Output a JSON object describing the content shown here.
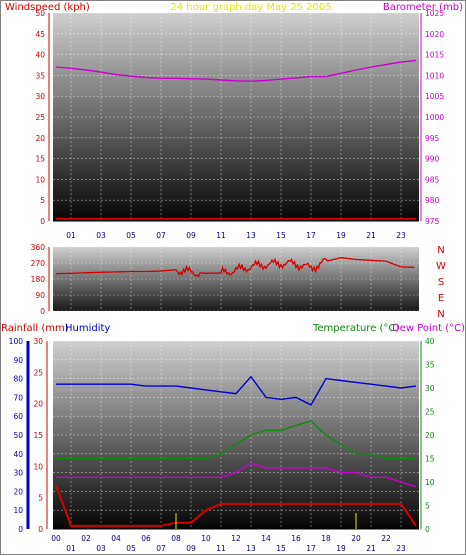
{
  "header": {
    "left_label": "Windspeed (kph)",
    "center_label": "24 hour graph day   May 25 2005",
    "right_label": "Barometer (mb)"
  },
  "colors": {
    "windspeed": "#d40000",
    "barometer": "#cc00cc",
    "title": "#e6e600",
    "rainfall": "#d40000",
    "humidity": "#0000cc",
    "temperature": "#118811",
    "dewpoint": "#cc00cc",
    "gridline": "#ffffff"
  },
  "chart_data": [
    {
      "id": "wind_baro",
      "type": "line",
      "x": [
        0,
        1,
        2,
        3,
        4,
        5,
        6,
        7,
        8,
        9,
        10,
        11,
        12,
        13,
        14,
        15,
        16,
        17,
        18,
        19,
        20,
        21,
        22,
        23,
        24
      ],
      "xticks": [
        "01",
        "03",
        "05",
        "07",
        "09",
        "11",
        "13",
        "15",
        "17",
        "19",
        "21",
        "23"
      ],
      "left_axis": {
        "ylim": [
          0,
          50
        ],
        "ticks": [
          "0",
          "5",
          "10",
          "15",
          "20",
          "25",
          "30",
          "35",
          "40",
          "45",
          "50"
        ]
      },
      "right_axis": {
        "ylim": [
          975,
          1025
        ],
        "ticks": [
          "975",
          "980",
          "985",
          "990",
          "995",
          "1000",
          "1005",
          "1010",
          "1015",
          "1020",
          "1025"
        ]
      },
      "series": [
        {
          "axis": "left",
          "values": [
            0.5,
            0.5,
            0.5,
            0.5,
            0.5,
            0.5,
            0.5,
            0.5,
            0.5,
            0.5,
            0.5,
            0.5,
            0.5,
            0.5,
            0.5,
            0.5,
            0.5,
            0.5,
            0.5,
            0.5,
            0.5,
            0.5,
            0.5,
            0.5,
            0.5
          ]
        },
        {
          "axis": "right",
          "values": [
            1012,
            1011.7,
            1011.3,
            1010.8,
            1010.2,
            1009.8,
            1009.5,
            1009.3,
            1009.3,
            1009.2,
            1009.1,
            1008.9,
            1008.7,
            1008.6,
            1008.8,
            1009.1,
            1009.4,
            1009.7,
            1009.7,
            1010.5,
            1011.3,
            1012,
            1012.6,
            1013.2,
            1013.6
          ]
        }
      ]
    },
    {
      "id": "wind_dir",
      "type": "line",
      "x": [
        0,
        1,
        2,
        3,
        4,
        5,
        6,
        7,
        8,
        9,
        10,
        11,
        12,
        13,
        14,
        15,
        16,
        17,
        18,
        19,
        20,
        21,
        22,
        23,
        24
      ],
      "y_ticks": [
        "0",
        "90",
        "180",
        "270",
        "360"
      ],
      "compass": [
        "N",
        "W",
        "S",
        "E",
        "N"
      ],
      "ylim": [
        0,
        360
      ],
      "series": [
        {
          "values": [
            210,
            212,
            215,
            218,
            220,
            222,
            222,
            225,
            232,
            218,
            212,
            214,
            230,
            250,
            262,
            268,
            265,
            240,
            280,
            300,
            290,
            285,
            280,
            248,
            245
          ]
        }
      ]
    },
    {
      "id": "rain_hum_temp",
      "type": "line",
      "x": [
        0,
        1,
        2,
        3,
        4,
        5,
        6,
        7,
        8,
        9,
        10,
        11,
        12,
        13,
        14,
        15,
        16,
        17,
        18,
        19,
        20,
        21,
        22,
        23,
        24
      ],
      "xticks": [
        "01",
        "03",
        "05",
        "07",
        "09",
        "11",
        "13",
        "15",
        "17",
        "19",
        "21",
        "23"
      ],
      "xticks_minor": [
        "00",
        "02",
        "04",
        "06",
        "08",
        "10",
        "12",
        "14",
        "16",
        "18",
        "20",
        "22"
      ],
      "labels": {
        "rainfall": "Rainfall (mm)",
        "humidity": "Humidity",
        "temperature": "Temperature (°C)",
        "dewpoint": "Dew Point (°C)"
      },
      "left_axes": {
        "humidity": {
          "ylim": [
            0,
            100
          ],
          "ticks": [
            "0",
            "10",
            "20",
            "30",
            "40",
            "50",
            "60",
            "70",
            "80",
            "90",
            "100"
          ]
        },
        "rainfall": {
          "ylim": [
            0,
            30
          ],
          "ticks": [
            "0",
            "5",
            "10",
            "15",
            "20",
            "25",
            "30"
          ]
        }
      },
      "right_axis": {
        "ylim": [
          0,
          40
        ],
        "ticks": [
          "0",
          "5",
          "10",
          "15",
          "20",
          "25",
          "30",
          "35",
          "40"
        ]
      },
      "series": [
        {
          "key": "humidity",
          "axis": "humidity",
          "values": [
            77,
            77,
            77,
            77,
            77,
            77,
            76,
            76,
            76,
            75,
            74,
            73,
            72,
            81,
            70,
            69,
            70,
            66,
            80,
            79,
            78,
            77,
            76,
            75,
            76
          ]
        },
        {
          "key": "temperature",
          "axis": "right",
          "values": [
            15,
            15,
            15,
            15,
            15,
            15,
            15,
            15,
            15,
            15,
            15,
            16,
            18,
            20,
            21,
            21,
            22,
            23,
            20,
            18,
            16,
            16,
            15,
            15,
            15
          ]
        },
        {
          "key": "dewpoint",
          "axis": "right",
          "values": [
            11,
            11,
            11,
            11,
            11,
            11,
            11,
            11,
            11,
            11,
            11,
            11,
            12,
            14,
            13,
            13,
            13,
            13,
            13,
            12,
            12,
            11,
            11,
            10,
            9
          ]
        },
        {
          "key": "rainfall",
          "axis": "rainfall",
          "values": [
            7,
            0.5,
            0.5,
            0.5,
            0.5,
            0.5,
            0.5,
            0.5,
            1,
            1,
            3,
            4,
            4,
            4,
            4,
            4,
            4,
            4,
            4,
            4,
            4,
            4,
            4,
            4,
            0.5
          ]
        }
      ]
    }
  ]
}
